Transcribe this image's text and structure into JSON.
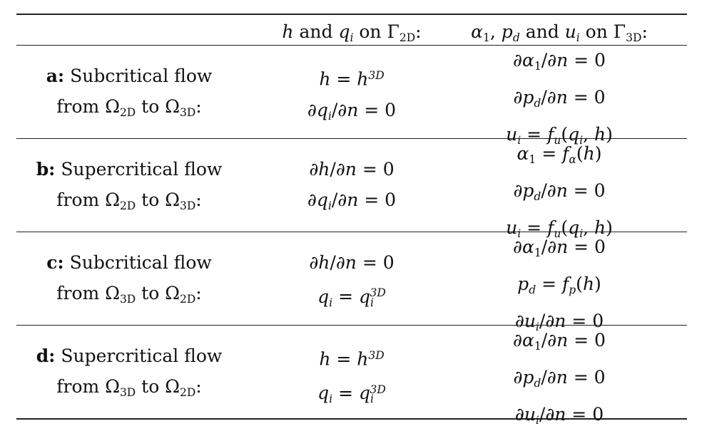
{
  "header": {
    "col1": "",
    "col2": "h and q_i on Γ_2D:",
    "col3": "α_1, p_d and u_i on Γ_3D:"
  },
  "rows": [
    {
      "label_letter": "a:",
      "label_line1": "Subcritical flow",
      "label_line2": "from Ω_2D to Ω_3D:",
      "col2": [
        "h = h^3D",
        "∂q_i/∂n = 0"
      ],
      "col3": [
        "∂α_1/∂n = 0",
        "∂p_d/∂n = 0",
        "u_i = f_u(q_i, h)"
      ]
    },
    {
      "label_letter": "b:",
      "label_line1": "Supercritical flow",
      "label_line2": "from Ω_2D to Ω_3D:",
      "col2": [
        "∂h/∂n = 0",
        "∂q_i/∂n = 0"
      ],
      "col3": [
        "α_1 = f_α(h)",
        "∂p_d/∂n = 0",
        "u_i = f_u(q_i, h)"
      ]
    },
    {
      "label_letter": "c:",
      "label_line1": "Subcritical flow",
      "label_line2": "from Ω_3D to Ω_2D:",
      "col2": [
        "∂h/∂n = 0",
        "q_i = q_i^3D"
      ],
      "col3": [
        "∂α_1/∂n = 0",
        "p_d = f_p(h)",
        "∂u_i/∂n = 0"
      ]
    },
    {
      "label_letter": "d:",
      "label_line1": "Supercritical flow",
      "label_line2": "from Ω_3D to Ω_2D:",
      "col2": [
        "h = h^3D",
        "q_i = q_i^3D"
      ],
      "col3": [
        "∂α_1/∂n = 0",
        "∂p_d/∂n = 0",
        "∂u_i/∂n = 0"
      ]
    }
  ]
}
